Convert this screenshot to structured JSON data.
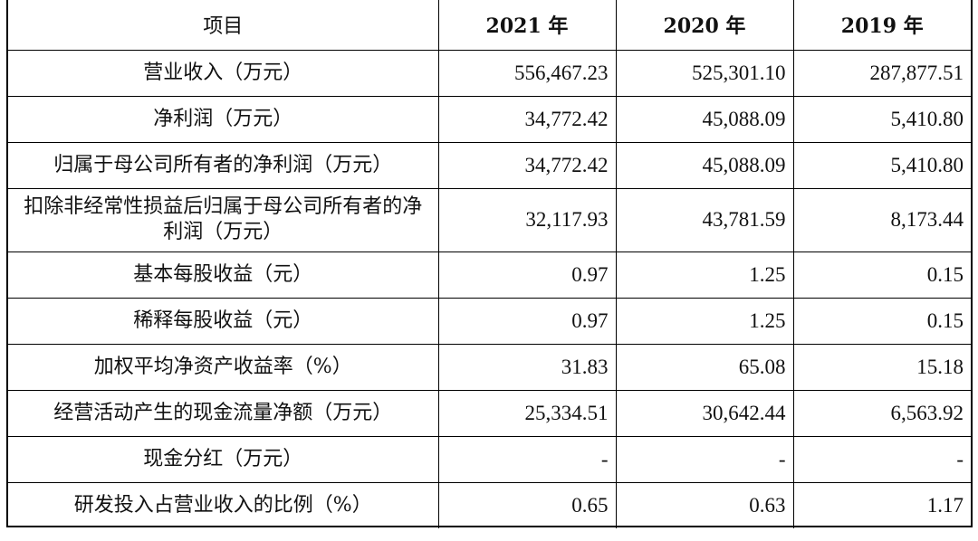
{
  "table": {
    "headers": [
      "项目",
      "2021 年",
      "2020 年",
      "2019 年"
    ],
    "rows": [
      {
        "label": "营业收入（万元）",
        "values": [
          "556,467.23",
          "525,301.10",
          "287,877.51"
        ]
      },
      {
        "label": "净利润（万元）",
        "values": [
          "34,772.42",
          "45,088.09",
          "5,410.80"
        ]
      },
      {
        "label": "归属于母公司所有者的净利润（万元）",
        "values": [
          "34,772.42",
          "45,088.09",
          "5,410.80"
        ]
      },
      {
        "label": "扣除非经常性损益后归属于母公司所有者的净利润（万元）",
        "values": [
          "32,117.93",
          "43,781.59",
          "8,173.44"
        ]
      },
      {
        "label": "基本每股收益（元）",
        "values": [
          "0.97",
          "1.25",
          "0.15"
        ]
      },
      {
        "label": "稀释每股收益（元）",
        "values": [
          "0.97",
          "1.25",
          "0.15"
        ]
      },
      {
        "label": "加权平均净资产收益率（%）",
        "values": [
          "31.83",
          "65.08",
          "15.18"
        ]
      },
      {
        "label": "经营活动产生的现金流量净额（万元）",
        "values": [
          "25,334.51",
          "30,642.44",
          "6,563.92"
        ]
      },
      {
        "label": "现金分红（万元）",
        "values": [
          "-",
          "-",
          "-"
        ]
      },
      {
        "label": "研发投入占营业收入的比例（%）",
        "values": [
          "0.65",
          "0.63",
          "1.17"
        ]
      }
    ]
  }
}
